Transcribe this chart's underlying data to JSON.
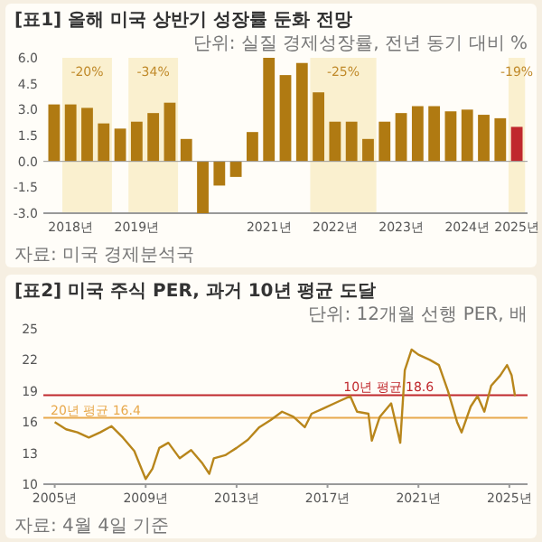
{
  "chart_data": [
    {
      "type": "bar",
      "title": "[표1] 올해 미국 상반기 성장률 둔화 전망",
      "subtitle": "단위: 실질 경제성장률, 전년 동기 대비 %",
      "annotations": [
        "-20%",
        "-34%",
        "-25%",
        "-19%",
        "자료: 미국 경제분석국"
      ],
      "categories": [
        null,
        "2018년",
        null,
        null,
        null,
        "2019년",
        null,
        null,
        null,
        null,
        null,
        null,
        null,
        "2021년",
        null,
        null,
        null,
        "2022년",
        null,
        null,
        null,
        "2023년",
        null,
        null,
        null,
        "2024년",
        null,
        null,
        "2025년"
      ],
      "values": [
        3.3,
        3.3,
        3.1,
        2.2,
        1.9,
        2.3,
        2.8,
        3.4,
        1.3,
        -3.0,
        -1.4,
        -0.9,
        1.7,
        6.0,
        5.0,
        5.7,
        4.0,
        2.3,
        2.3,
        1.3,
        2.3,
        2.8,
        3.2,
        3.2,
        2.9,
        3.0,
        2.7,
        2.5,
        2.0
      ],
      "colors": [
        "#b07a12",
        "#b07a12",
        "#b07a12",
        "#b07a12",
        "#b07a12",
        "#b07a12",
        "#b07a12",
        "#b07a12",
        "#b07a12",
        "#b07a12",
        "#b07a12",
        "#b07a12",
        "#b07a12",
        "#b07a12",
        "#b07a12",
        "#b07a12",
        "#b07a12",
        "#b07a12",
        "#b07a12",
        "#b07a12",
        "#b07a12",
        "#b07a12",
        "#b07a12",
        "#b07a12",
        "#b07a12",
        "#b07a12",
        "#b07a12",
        "#b07a12",
        "#c0282d"
      ],
      "ylim": [
        -3,
        6
      ],
      "yticks": [
        {
          "value": -3,
          "label": "-3.0"
        },
        {
          "value": -1.5,
          "label": "-1.5"
        },
        {
          "value": 0,
          "label": "0.0"
        },
        {
          "value": 1.5,
          "label": "1.5"
        },
        {
          "value": 3,
          "label": "3.0"
        },
        {
          "value": 4.5,
          "label": "4.5"
        },
        {
          "value": 6,
          "label": "6.0"
        }
      ]
    },
    {
      "type": "line",
      "title": "[표2] 미국 주식 PER, 과거 10년 평균 도달",
      "subtitle": "단위: 12개월 선행 PER, 배",
      "annotations": [
        "자료: 4월 4일 기준"
      ],
      "x": [
        2005.0,
        2005.5,
        2006.0,
        2006.5,
        2007.0,
        2007.5,
        2008.0,
        2008.5,
        2009.0,
        2009.3,
        2009.6,
        2010.0,
        2010.5,
        2011.0,
        2011.5,
        2011.8,
        2012.0,
        2012.5,
        2013.0,
        2013.5,
        2014.0,
        2014.5,
        2015.0,
        2015.5,
        2016.0,
        2016.3,
        2016.8,
        2017.5,
        2018.0,
        2018.3,
        2018.8,
        2018.95,
        2019.3,
        2019.8,
        2020.2,
        2020.4,
        2020.7,
        2021.0,
        2021.5,
        2021.9,
        2022.3,
        2022.7,
        2022.9,
        2023.3,
        2023.6,
        2023.9,
        2024.2,
        2024.6,
        2024.9,
        2025.1,
        2025.25
      ],
      "series": [
        {
          "color": "#b8861c",
          "values": [
            16.0,
            15.3,
            15.0,
            14.5,
            15.0,
            15.6,
            14.5,
            13.2,
            10.5,
            11.5,
            13.5,
            14.0,
            12.5,
            13.3,
            12.0,
            11.0,
            12.5,
            12.8,
            13.5,
            14.3,
            15.5,
            16.2,
            17.0,
            16.5,
            15.5,
            16.8,
            17.3,
            18.0,
            18.5,
            17.0,
            16.8,
            14.2,
            16.5,
            17.8,
            14.0,
            21.0,
            23.0,
            22.5,
            22.0,
            21.5,
            19.0,
            16.0,
            15.0,
            17.5,
            18.5,
            17.0,
            19.5,
            20.5,
            21.5,
            20.5,
            18.5
          ]
        }
      ],
      "xlim": [
        2004.5,
        2025.8
      ],
      "xticks": [
        {
          "value": 2005,
          "label": "2005년"
        },
        {
          "value": 2009,
          "label": "2009년"
        },
        {
          "value": 2013,
          "label": "2013년"
        },
        {
          "value": 2017,
          "label": "2017년"
        },
        {
          "value": 2021,
          "label": "2021년"
        },
        {
          "value": 2025,
          "label": "2025년"
        }
      ],
      "ylim": [
        10,
        25
      ],
      "yticks": [
        10,
        13,
        16,
        19,
        22,
        25
      ],
      "ref_lines": [
        {
          "axis": "y",
          "value": 18.6,
          "label": "10년 평균 18.6",
          "color": "#c0282d"
        },
        {
          "axis": "y",
          "value": 16.4,
          "label": "20년 평균 16.4",
          "color": "#e8a94c"
        }
      ]
    }
  ]
}
